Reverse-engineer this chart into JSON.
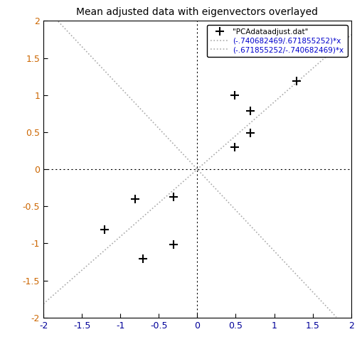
{
  "title": "Mean adjusted data with eigenvectors overlayed",
  "xlim": [
    -2,
    2
  ],
  "ylim": [
    -2,
    2
  ],
  "xticks": [
    -2,
    -1.5,
    -1,
    -0.5,
    0,
    0.5,
    1,
    1.5,
    2
  ],
  "yticks": [
    -2,
    -1.5,
    -1,
    -0.5,
    0,
    0.5,
    1,
    1.5,
    2
  ],
  "data_x": [
    0.49,
    0.69,
    1.29,
    0.69,
    0.49,
    -0.31,
    -0.31,
    -0.81,
    -1.21,
    -0.71
  ],
  "data_y": [
    1.0,
    0.79,
    1.19,
    0.49,
    0.3,
    -0.37,
    -1.01,
    -0.4,
    -0.81,
    -1.21
  ],
  "line1_label": "(-.740682469/.671855252)*x",
  "line2_label": "(-.671855252/-.740682469)*x",
  "data_label": "\"PCAdataadjust.dat\"",
  "data_color": "#000000",
  "line_color": "#aaaaaa",
  "title_color": "#000000",
  "bg_color": "#ffffff",
  "ytick_color": "#cc6600",
  "xtick_color": "#000099",
  "legend_text_color1": "#000000",
  "legend_text_color2": "#0000cc",
  "figsize": [
    5.09,
    4.91
  ],
  "dpi": 100
}
